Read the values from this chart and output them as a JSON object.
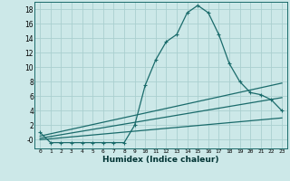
{
  "xlabel": "Humidex (Indice chaleur)",
  "bg_color": "#cce8e8",
  "grid_color": "#aacfcf",
  "line_color": "#1a6b6b",
  "xlim": [
    -0.5,
    23.5
  ],
  "ylim": [
    -1.2,
    19.0
  ],
  "xticks": [
    0,
    1,
    2,
    3,
    4,
    5,
    6,
    7,
    8,
    9,
    10,
    11,
    12,
    13,
    14,
    15,
    16,
    17,
    18,
    19,
    20,
    21,
    22,
    23
  ],
  "yticks": [
    0,
    2,
    4,
    6,
    8,
    10,
    12,
    14,
    16,
    18
  ],
  "ytick_labels": [
    "-0",
    "2",
    "4",
    "6",
    "8",
    "10",
    "12",
    "14",
    "16",
    "18"
  ],
  "curve1_x": [
    0,
    1,
    2,
    3,
    4,
    5,
    6,
    7,
    8,
    9,
    10,
    11,
    12,
    13,
    14,
    15,
    16,
    17,
    18,
    19,
    20,
    21,
    22,
    23
  ],
  "curve1_y": [
    1.0,
    -0.4,
    -0.4,
    -0.4,
    -0.4,
    -0.4,
    -0.4,
    -0.4,
    -0.4,
    2.0,
    7.5,
    11.0,
    13.5,
    14.5,
    17.5,
    18.5,
    17.5,
    14.5,
    10.5,
    8.0,
    6.5,
    6.2,
    5.5,
    4.0
  ],
  "curve2_x": [
    0,
    23
  ],
  "curve2_y": [
    0.5,
    7.8
  ],
  "curve3_x": [
    0,
    23
  ],
  "curve3_y": [
    0.2,
    5.8
  ],
  "curve4_x": [
    0,
    23
  ],
  "curve4_y": [
    0.0,
    3.0
  ]
}
